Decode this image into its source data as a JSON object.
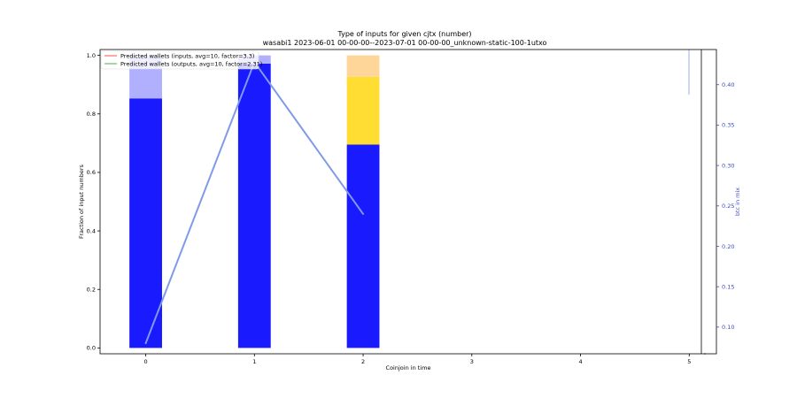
{
  "chart_data": {
    "type": "bar",
    "title_line1": "Type of inputs for given cjtx (number)",
    "title_line2": "wasabi1 2023-06-01 00-00-00--2023-07-01 00-00-00_unknown-static-100-1utxo",
    "xlabel": "Coinjoin in time",
    "ylabel": "Fraction of input numbers",
    "y2label": "btc in mix",
    "x_ticks": [
      0,
      1,
      2,
      3,
      4,
      5
    ],
    "y_ticks": [
      "0.0",
      "0.2",
      "0.4",
      "0.6",
      "0.8",
      "1.0"
    ],
    "y2_ticks": [
      "0.10",
      "0.15",
      "0.20",
      "0.25",
      "0.30",
      "0.35",
      "0.40"
    ],
    "xlim": [
      -0.42,
      5.25
    ],
    "ylim": [
      -0.02,
      1.02
    ],
    "y2lim": [
      0.067,
      0.4435
    ],
    "categories": [
      0,
      1,
      2
    ],
    "stacks": [
      {
        "segments": [
          {
            "value": 0.853,
            "color": "#1a1aff"
          },
          {
            "value": 0.147,
            "color": "#b0b0ff"
          }
        ]
      },
      {
        "segments": [
          {
            "value": 0.972,
            "color": "#1a1aff"
          },
          {
            "value": 0.028,
            "color": "#b0b0ff"
          }
        ]
      },
      {
        "segments": [
          {
            "value": 0.695,
            "color": "#1a1aff"
          },
          {
            "value": 0.232,
            "color": "#ffdd33"
          },
          {
            "value": 0.073,
            "color": "#ffd699"
          }
        ]
      }
    ],
    "btc_series": {
      "color": "#7f9ae8",
      "x": [
        0,
        1,
        2
      ],
      "y": [
        0.08,
        0.428,
        0.24
      ]
    },
    "legend": [
      {
        "label": "Predicted wallets (inputs, avg=10, factor=3.3)",
        "color": "#ff4d4d"
      },
      {
        "label": "Predicted wallets (outputs, avg=10, factor=2.31)",
        "color": "#4caf50"
      }
    ]
  }
}
